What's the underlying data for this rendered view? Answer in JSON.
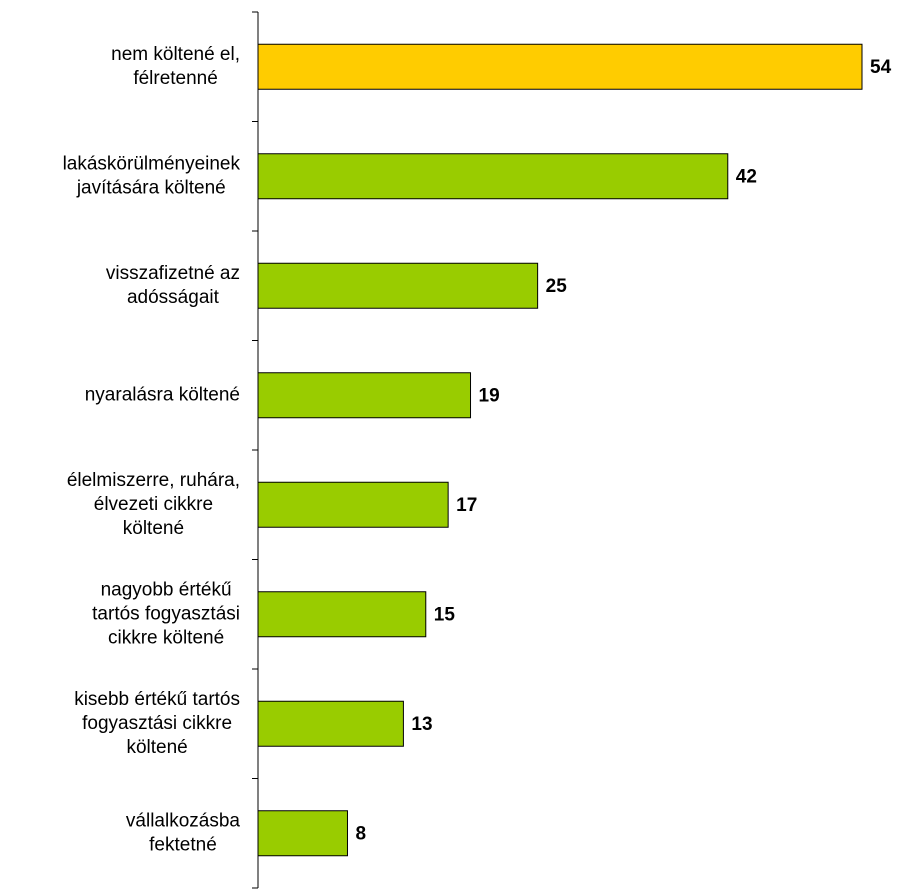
{
  "chart_data": {
    "type": "bar",
    "orientation": "horizontal",
    "categories": [
      [
        "nem költené el,",
        "félretenné"
      ],
      [
        "lakáskörülményeinek",
        "javítására költené"
      ],
      [
        "visszafizetné az",
        "adósságait"
      ],
      [
        "nyaralásra költené"
      ],
      [
        "élelmiszerre, ruhára,",
        "élvezeti cikkre",
        "költené"
      ],
      [
        "nagyobb értékű",
        "tartós fogyasztási",
        "cikkre költené"
      ],
      [
        "kisebb értékű tartós",
        "fogyasztási cikkre",
        "költené"
      ],
      [
        "vállalkozásba",
        "fektetné"
      ]
    ],
    "values": [
      54,
      42,
      25,
      19,
      17,
      15,
      13,
      8
    ],
    "colors": [
      "#ffcc00",
      "#99cc00",
      "#99cc00",
      "#99cc00",
      "#99cc00",
      "#99cc00",
      "#99cc00",
      "#99cc00"
    ]
  }
}
